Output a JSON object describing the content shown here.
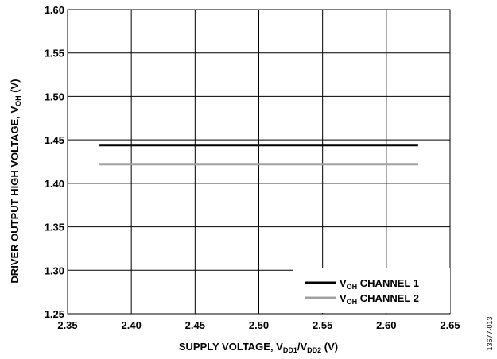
{
  "chart_data": {
    "type": "line",
    "xlabel": {
      "main": "SUPPLY VOLTAGE, V",
      "sub1": "DD1",
      "mid": "/V",
      "sub2": "DD2",
      "unit": " (V)"
    },
    "ylabel": {
      "main": "DRIVER OUTPUT HIGH VOLTAGE, V",
      "sub": "OH",
      "unit": " (V)"
    },
    "xlim": [
      2.35,
      2.65
    ],
    "ylim": [
      1.25,
      1.6
    ],
    "xticks": [
      2.35,
      2.4,
      2.45,
      2.5,
      2.55,
      2.6,
      2.65
    ],
    "xtick_labels": [
      "2.35",
      "2.40",
      "2.45",
      "2.50",
      "2.55",
      "2.60",
      "2.65"
    ],
    "yticks": [
      1.25,
      1.3,
      1.35,
      1.4,
      1.45,
      1.5,
      1.55,
      1.6
    ],
    "ytick_labels": [
      "1.25",
      "1.30",
      "1.35",
      "1.40",
      "1.45",
      "1.50",
      "1.55",
      "1.60"
    ],
    "grid": true,
    "legend_position": "bottom-right",
    "series": [
      {
        "name": "CHANNEL 1",
        "name_prefix": "V",
        "name_sub": "OH",
        "color": "#000000",
        "x": [
          2.375,
          2.625
        ],
        "y": [
          1.444,
          1.444
        ]
      },
      {
        "name": "CHANNEL 2",
        "name_prefix": "V",
        "name_sub": "OH",
        "color": "#a0a0a0",
        "x": [
          2.375,
          2.625
        ],
        "y": [
          1.422,
          1.422
        ]
      }
    ]
  },
  "figure_id": "13677-013"
}
